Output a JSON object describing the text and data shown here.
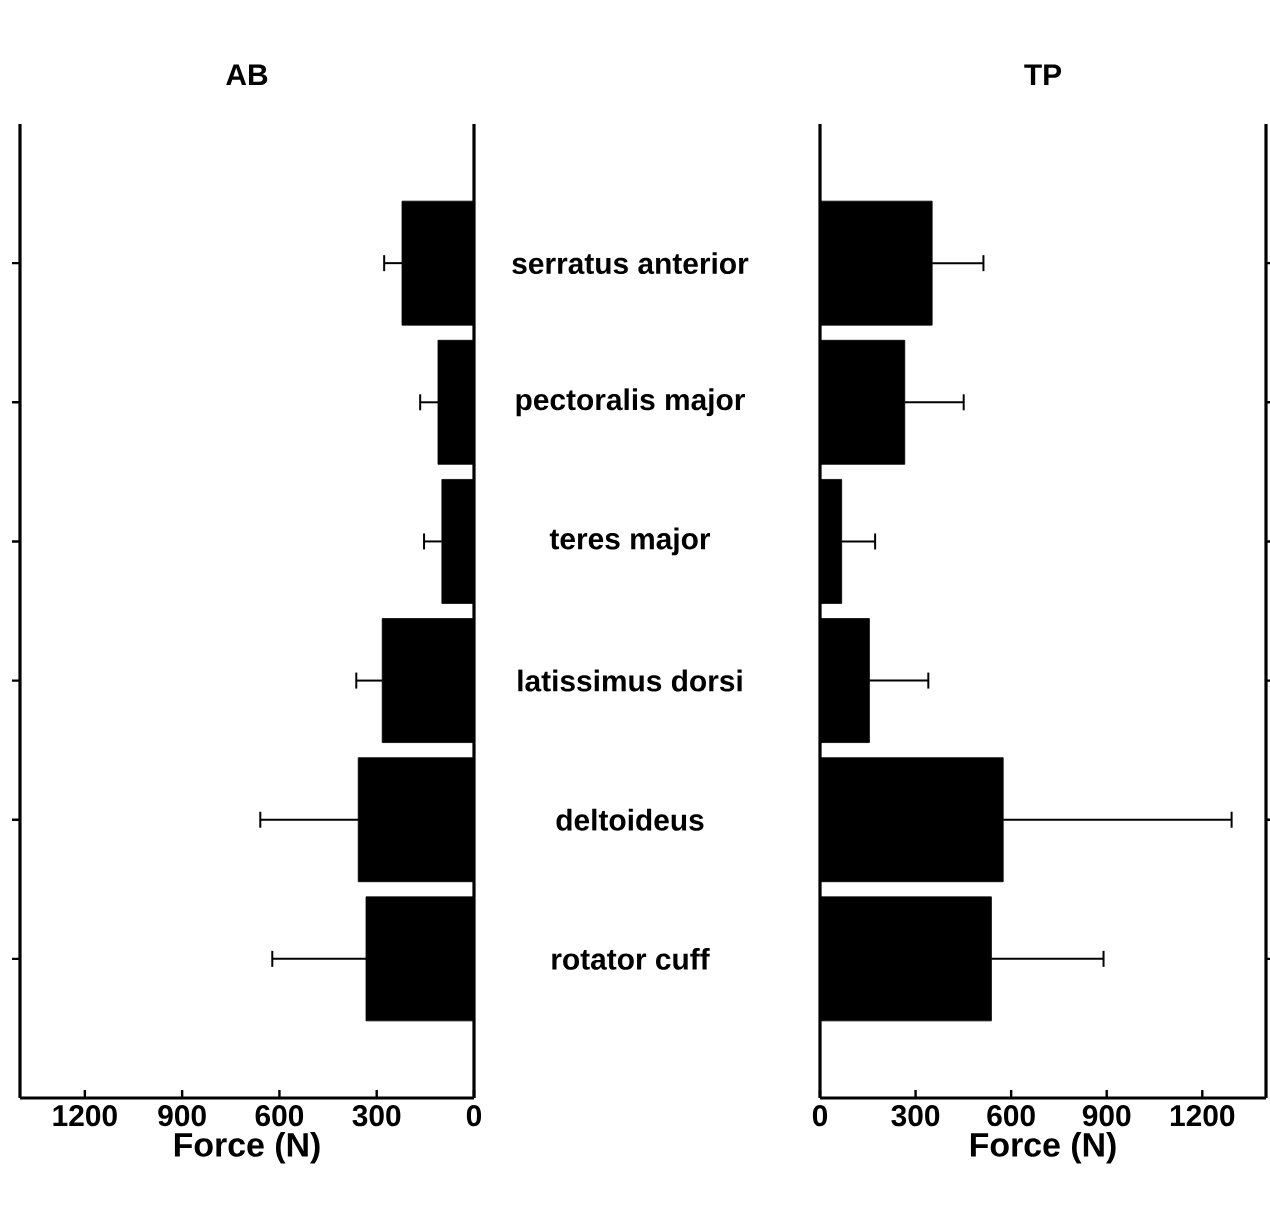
{
  "chart_data": [
    {
      "type": "bar",
      "orientation": "horizontal",
      "title": "AB",
      "xlabel": "Force (N)",
      "categories": [
        "serratus anterior",
        "pectoralis major",
        "teres major",
        "latissimus dorsi",
        "deltoideus",
        "rotator cuff"
      ],
      "values": [
        222,
        111,
        99,
        283,
        357,
        333
      ],
      "errors": [
        [
          222,
          277
        ],
        [
          111,
          166
        ],
        [
          99,
          154
        ],
        [
          283,
          363
        ],
        [
          357,
          659
        ],
        [
          333,
          622
        ]
      ],
      "color": "#000000",
      "xlim": [
        1400,
        0
      ],
      "xticks": [
        1200,
        900,
        600,
        300,
        0
      ],
      "grid": false
    },
    {
      "type": "bar",
      "orientation": "horizontal",
      "title": "TP",
      "xlabel": "Force (N)",
      "categories": [
        null,
        null,
        null,
        null,
        null,
        null
      ],
      "values": [
        352,
        266,
        68,
        155,
        575,
        538
      ],
      "errors": [
        [
          352,
          513
        ],
        [
          266,
          451
        ],
        [
          68,
          173
        ],
        [
          155,
          340
        ],
        [
          575,
          1292
        ],
        [
          538,
          890
        ]
      ],
      "color": "#000000",
      "xlim": [
        0,
        1400
      ],
      "xticks": [
        0,
        300,
        600,
        900,
        1200
      ],
      "grid": false,
      "tick_labels": "x"
    }
  ]
}
